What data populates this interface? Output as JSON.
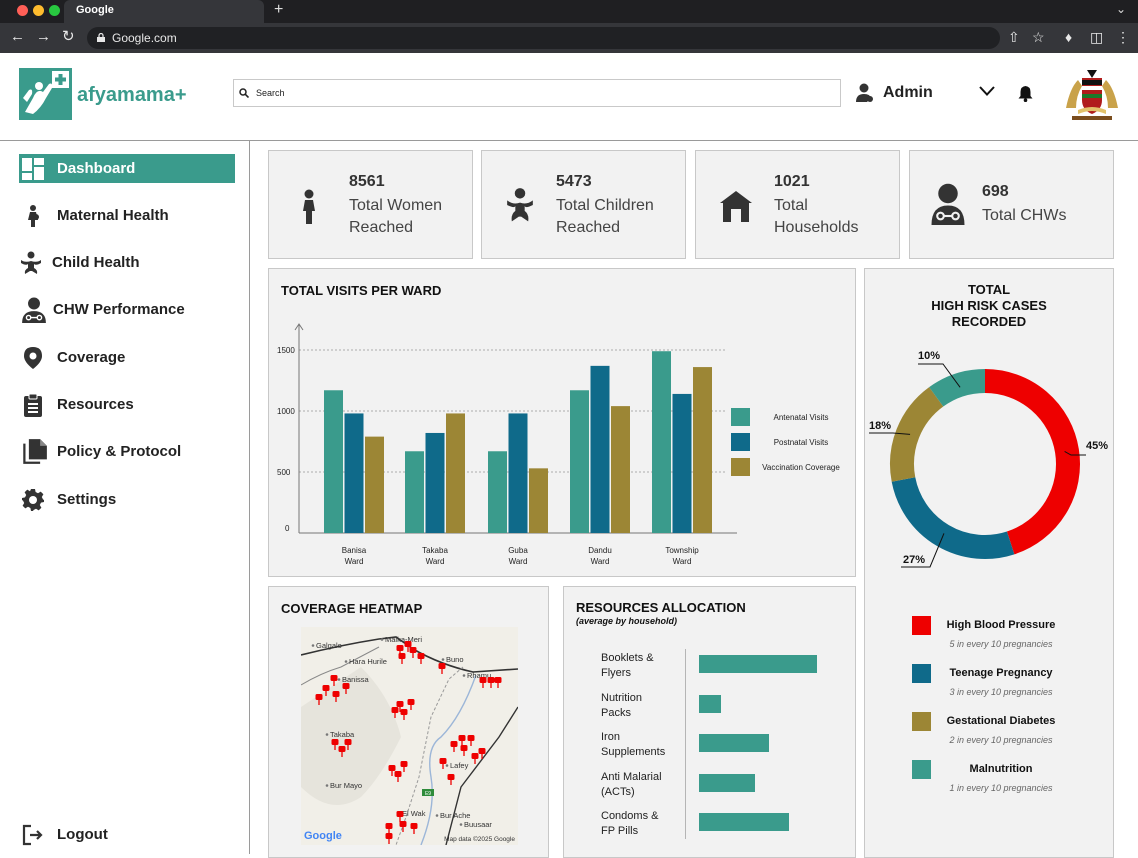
{
  "browser": {
    "tab_title": "Google",
    "url": "Google.com",
    "new_tab": "+"
  },
  "header": {
    "brand": "afyamama+",
    "search_placeholder": "Search",
    "user": "Admin"
  },
  "sidebar": {
    "items": [
      {
        "label": "Dashboard",
        "icon": "dashboard-icon"
      },
      {
        "label": "Maternal Health",
        "icon": "mother-icon"
      },
      {
        "label": "Child Health",
        "icon": "baby-icon"
      },
      {
        "label": "CHW Performance",
        "icon": "doctor-icon"
      },
      {
        "label": "Coverage",
        "icon": "location-pin-icon"
      },
      {
        "label": "Resources",
        "icon": "clipboard-icon"
      },
      {
        "label": "Policy & Protocol",
        "icon": "documents-icon"
      },
      {
        "label": "Settings",
        "icon": "gear-icon"
      }
    ],
    "logout": "Logout"
  },
  "stats": [
    {
      "value": "8561",
      "line1": "Total Women",
      "line2": "Reached",
      "icon": "woman-icon"
    },
    {
      "value": "5473",
      "line1": "Total Children",
      "line2": "Reached",
      "icon": "baby-icon"
    },
    {
      "value": "1021",
      "line1": "Total",
      "line2": "Households",
      "icon": "house-icon"
    },
    {
      "value": "698",
      "line1": "Total CHWs",
      "line2": "",
      "icon": "doctor-icon"
    }
  ],
  "visits_chart": {
    "title": "TOTAL VISITS PER WARD"
  },
  "chart_data": [
    {
      "type": "bar",
      "title": "TOTAL VISITS PER WARD",
      "categories": [
        "Banisa Ward",
        "Takaba Ward",
        "Guba Ward",
        "Dandu Ward",
        "Township Ward"
      ],
      "category_lines": [
        [
          "Banisa",
          "Ward"
        ],
        [
          "Takaba",
          "Ward"
        ],
        [
          "Guba",
          "Ward"
        ],
        [
          "Dandu",
          "Ward"
        ],
        [
          "Township",
          "Ward"
        ]
      ],
      "series": [
        {
          "name": "Antenatal Visits",
          "color": "#3a9b8c",
          "values": [
            1170,
            670,
            670,
            1170,
            1490
          ]
        },
        {
          "name": "Postnatal Visits",
          "color": "#0f6a8a",
          "values": [
            980,
            820,
            980,
            1370,
            1140
          ]
        },
        {
          "name": "Vaccination Coverage",
          "color": "#9c8635",
          "values": [
            790,
            980,
            530,
            1040,
            1360
          ]
        }
      ],
      "yticks": [
        0,
        500,
        1000,
        1500
      ],
      "ylim": [
        0,
        1500
      ],
      "grid": true,
      "legend": "right"
    },
    {
      "type": "pie",
      "title": "TOTAL HIGH RISK CASES RECORDED",
      "categories": [
        "High Blood Pressure",
        "Teenage Pregnancy",
        "Gestational Diabetes",
        "Malnutrition"
      ],
      "values": [
        45,
        27,
        18,
        10
      ],
      "labels": [
        "45%",
        "27%",
        "18%",
        "10%"
      ],
      "colors": [
        "#ee0000",
        "#0f6a8a",
        "#9c8635",
        "#3a9b8c"
      ]
    },
    {
      "type": "bar",
      "title": "RESOURCES ALLOCATION",
      "subtitle": "(average by household)",
      "categories": [
        "Booklets & Flyers",
        "Nutrition Packs",
        "Iron Supplements",
        "Anti Malarial (ACTs)",
        "Condoms & FP Pills"
      ],
      "values": [
        118,
        22,
        70,
        56,
        90
      ],
      "orientation": "horizontal",
      "color": "#3a9b8c"
    }
  ],
  "risk": {
    "title_lines": [
      "TOTAL",
      "HIGH RISK CASES",
      "RECORDED"
    ],
    "legend": [
      {
        "label": "High Blood Pressure",
        "sub": "5 in every 10 pregnancies",
        "color": "#ee0000"
      },
      {
        "label": "Teenage Pregnancy",
        "sub": "3 in every 10 pregnancies",
        "color": "#0f6a8a"
      },
      {
        "label": "Gestational Diabetes",
        "sub": "2 in every 10 pregnancies",
        "color": "#9c8635"
      },
      {
        "label": "Malnutrition",
        "sub": "1 in every 10 pregnancies",
        "color": "#3a9b8c"
      }
    ]
  },
  "heatmap": {
    "title": "COVERAGE HEATMAP",
    "places": [
      "Galgalo",
      "Malka-Meri",
      "Hara Hurile",
      "Banissa",
      "Buno",
      "Rhamu",
      "Takaba",
      "Lafey",
      "Bur Mayo",
      "El Wak",
      "Bur Ache",
      "Buusaar"
    ],
    "road_label": "E9",
    "brand": "Google",
    "attribution": "Map data ©2025 Google"
  },
  "resources": {
    "title": "RESOURCES ALLOCATION",
    "subtitle": "(average by household)",
    "labels": [
      [
        "Booklets &",
        "Flyers"
      ],
      [
        "Nutrition",
        "Packs"
      ],
      [
        "Iron",
        "Supplements"
      ],
      [
        "Anti Malarial",
        "(ACTs)"
      ],
      [
        "Condoms &",
        "FP Pills"
      ]
    ]
  }
}
